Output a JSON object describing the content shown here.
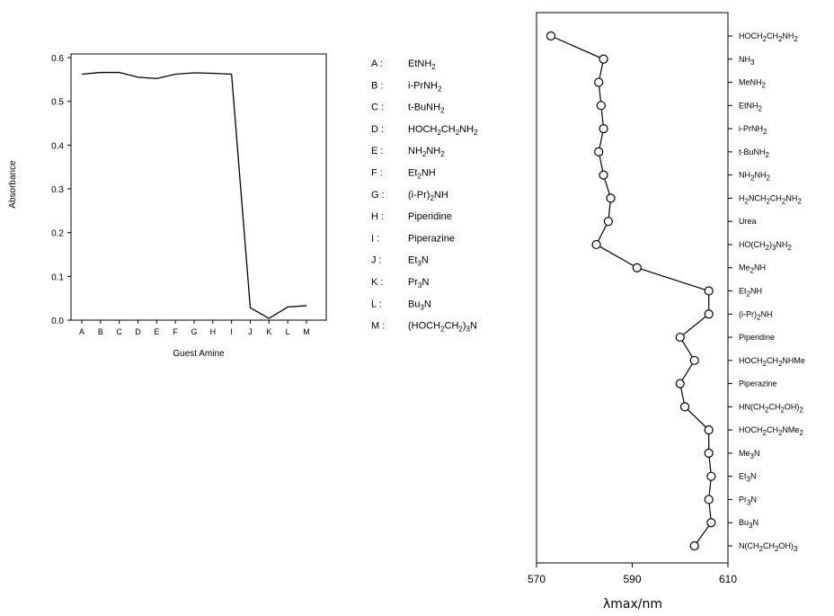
{
  "chart_data": [
    {
      "type": "line",
      "xlabel": "Guest Amine",
      "ylabel": "Absorbance",
      "ylim": [
        0,
        0.6
      ],
      "yticks": [
        "0.0",
        "0.1",
        "0.2",
        "0.3",
        "0.4",
        "0.5",
        "0.6"
      ],
      "categories": [
        "A",
        "B",
        "C",
        "D",
        "E",
        "F",
        "G",
        "H",
        "I",
        "J",
        "K",
        "L",
        "M"
      ],
      "values": [
        0.562,
        0.566,
        0.566,
        0.555,
        0.552,
        0.562,
        0.565,
        0.564,
        0.562,
        0.028,
        0.004,
        0.03,
        0.033
      ],
      "grid": false,
      "legend": {
        "placement": "right",
        "entries": [
          {
            "key": "A :",
            "label": "EtNH2"
          },
          {
            "key": "B :",
            "label": "i-PrNH2"
          },
          {
            "key": "C :",
            "label": "t-BuNH2"
          },
          {
            "key": "D :",
            "label": "HOCH2CH2NH2"
          },
          {
            "key": "E :",
            "label": "NH2NH2"
          },
          {
            "key": "F :",
            "label": "Et2NH"
          },
          {
            "key": "G :",
            "label": "(i-Pr)2NH"
          },
          {
            "key": "H :",
            "label": "Piperidine"
          },
          {
            "key": "I :",
            "label": "Piperazine"
          },
          {
            "key": "J :",
            "label": "Et3N"
          },
          {
            "key": "K :",
            "label": "Pr3N"
          },
          {
            "key": "L :",
            "label": "Bu3N"
          },
          {
            "key": "M :",
            "label": "(HOCH2CH2)3N"
          }
        ]
      }
    },
    {
      "type": "line",
      "orientation": "horizontal",
      "xlabel": "λmax/nm",
      "xlim": [
        570,
        610
      ],
      "xticks": [
        "570",
        "590",
        "610"
      ],
      "grid": false,
      "categories": [
        "HOCH2CH2NH2",
        "NH3",
        "MeNH2",
        "EtNH2",
        "i-PrNH2",
        "t-BuNH2",
        "NH2NH2",
        "H2NCH2CH2NH2",
        "Urea",
        "HO(CH2)3NH2",
        "Me2NH",
        "Et2NH",
        "(i-Pr)2NH",
        "Piperidine",
        "HOCH2CH2NHMe",
        "Piperazine",
        "HN(CH2CH2OH)2",
        "HOCH2CH2NMe2",
        "Me3N",
        "Et3N",
        "Pr3N",
        "Bu3N",
        "N(CH2CH2OH)3"
      ],
      "values": [
        573,
        584,
        583,
        583.5,
        584,
        583,
        584,
        585.5,
        585,
        582.5,
        591,
        606,
        606,
        600,
        603,
        600,
        601,
        606,
        606,
        606.5,
        606,
        606.5,
        603
      ],
      "markers": "open-circle"
    }
  ]
}
